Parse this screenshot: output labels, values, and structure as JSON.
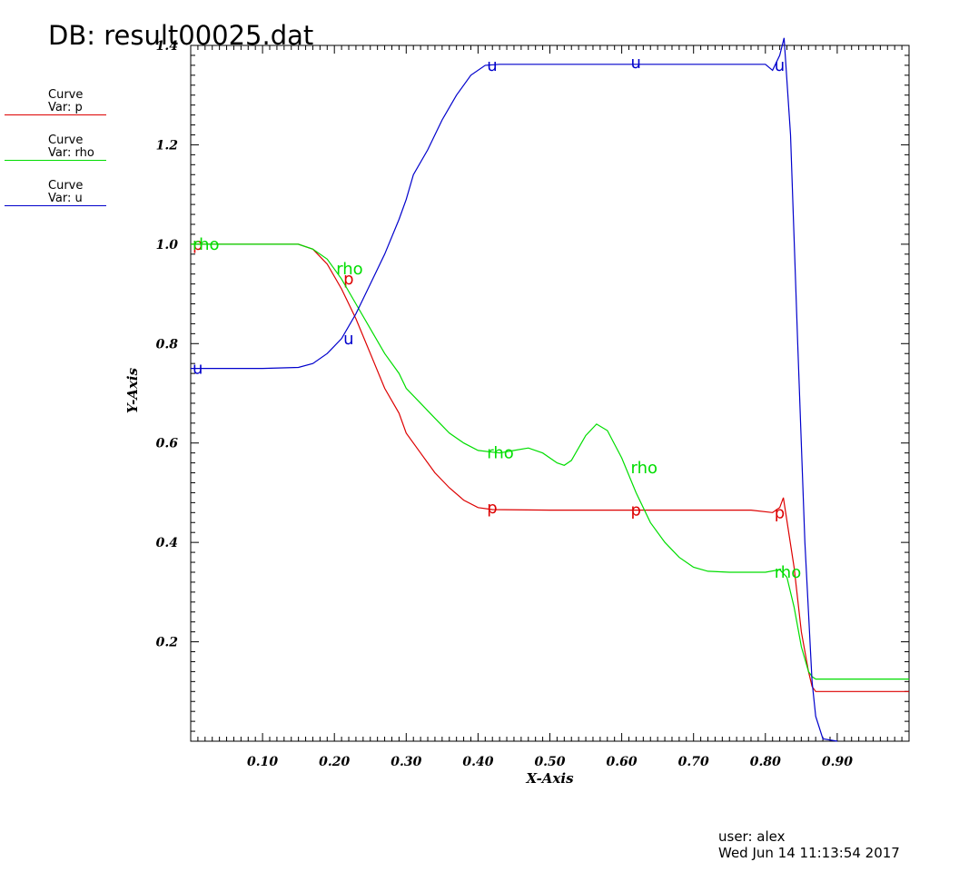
{
  "header": {
    "title": "DB: result00025.dat"
  },
  "legend": [
    {
      "label": "Curve",
      "var": "Var: p",
      "color": "#dd0000"
    },
    {
      "label": "Curve",
      "var": "Var: rho",
      "color": "#00dd00"
    },
    {
      "label": "Curve",
      "var": "Var: u",
      "color": "#0000cc"
    }
  ],
  "footer": {
    "user": "user: alex",
    "date": "Wed Jun 14 11:13:54 2017"
  },
  "chart_data": {
    "type": "line",
    "title": "DB: result00025.dat",
    "xlabel": "X-Axis",
    "ylabel": "Y-Axis",
    "xlim": [
      0.0,
      1.0
    ],
    "ylim": [
      0.0,
      1.4
    ],
    "xticks": [
      "0.10",
      "0.20",
      "0.30",
      "0.40",
      "0.50",
      "0.60",
      "0.70",
      "0.80",
      "0.90"
    ],
    "yticks": [
      "0.2",
      "0.4",
      "0.6",
      "0.8",
      "1.0",
      "1.2",
      "1.4"
    ],
    "grid": false,
    "legend_position": "left",
    "series": [
      {
        "name": "p",
        "color": "#dd0000",
        "points": [
          [
            0.0,
            1.0
          ],
          [
            0.1,
            1.0
          ],
          [
            0.15,
            1.0
          ],
          [
            0.17,
            0.99
          ],
          [
            0.19,
            0.96
          ],
          [
            0.21,
            0.91
          ],
          [
            0.23,
            0.85
          ],
          [
            0.25,
            0.78
          ],
          [
            0.27,
            0.71
          ],
          [
            0.29,
            0.66
          ],
          [
            0.3,
            0.62
          ],
          [
            0.32,
            0.58
          ],
          [
            0.34,
            0.54
          ],
          [
            0.36,
            0.51
          ],
          [
            0.38,
            0.485
          ],
          [
            0.4,
            0.47
          ],
          [
            0.42,
            0.466
          ],
          [
            0.5,
            0.465
          ],
          [
            0.6,
            0.465
          ],
          [
            0.7,
            0.465
          ],
          [
            0.78,
            0.465
          ],
          [
            0.81,
            0.46
          ],
          [
            0.82,
            0.47
          ],
          [
            0.825,
            0.49
          ],
          [
            0.84,
            0.35
          ],
          [
            0.85,
            0.22
          ],
          [
            0.86,
            0.14
          ],
          [
            0.865,
            0.11
          ],
          [
            0.87,
            0.1
          ],
          [
            1.0,
            0.1
          ]
        ],
        "markers": [
          [
            0.0,
            1.0
          ],
          [
            0.21,
            0.93
          ],
          [
            0.41,
            0.47
          ],
          [
            0.61,
            0.465
          ],
          [
            0.81,
            0.46
          ]
        ]
      },
      {
        "name": "rho",
        "color": "#00dd00",
        "points": [
          [
            0.0,
            1.0
          ],
          [
            0.1,
            1.0
          ],
          [
            0.15,
            1.0
          ],
          [
            0.17,
            0.99
          ],
          [
            0.19,
            0.97
          ],
          [
            0.21,
            0.93
          ],
          [
            0.23,
            0.88
          ],
          [
            0.25,
            0.83
          ],
          [
            0.27,
            0.78
          ],
          [
            0.29,
            0.74
          ],
          [
            0.3,
            0.71
          ],
          [
            0.32,
            0.68
          ],
          [
            0.34,
            0.65
          ],
          [
            0.36,
            0.62
          ],
          [
            0.38,
            0.6
          ],
          [
            0.4,
            0.585
          ],
          [
            0.43,
            0.58
          ],
          [
            0.45,
            0.585
          ],
          [
            0.47,
            0.59
          ],
          [
            0.49,
            0.58
          ],
          [
            0.51,
            0.56
          ],
          [
            0.52,
            0.555
          ],
          [
            0.53,
            0.565
          ],
          [
            0.54,
            0.59
          ],
          [
            0.55,
            0.615
          ],
          [
            0.565,
            0.638
          ],
          [
            0.58,
            0.625
          ],
          [
            0.6,
            0.57
          ],
          [
            0.62,
            0.5
          ],
          [
            0.64,
            0.44
          ],
          [
            0.66,
            0.4
          ],
          [
            0.68,
            0.37
          ],
          [
            0.7,
            0.35
          ],
          [
            0.72,
            0.342
          ],
          [
            0.75,
            0.34
          ],
          [
            0.8,
            0.34
          ],
          [
            0.82,
            0.345
          ],
          [
            0.83,
            0.33
          ],
          [
            0.84,
            0.27
          ],
          [
            0.85,
            0.19
          ],
          [
            0.86,
            0.14
          ],
          [
            0.865,
            0.13
          ],
          [
            0.87,
            0.125
          ],
          [
            1.0,
            0.125
          ]
        ],
        "markers": [
          [
            0.0,
            1.0
          ],
          [
            0.2,
            0.95
          ],
          [
            0.41,
            0.58
          ],
          [
            0.61,
            0.55
          ],
          [
            0.81,
            0.34
          ]
        ]
      },
      {
        "name": "u",
        "color": "#0000cc",
        "points": [
          [
            0.0,
            0.75
          ],
          [
            0.1,
            0.75
          ],
          [
            0.15,
            0.752
          ],
          [
            0.17,
            0.76
          ],
          [
            0.19,
            0.78
          ],
          [
            0.21,
            0.81
          ],
          [
            0.23,
            0.86
          ],
          [
            0.25,
            0.92
          ],
          [
            0.27,
            0.98
          ],
          [
            0.29,
            1.05
          ],
          [
            0.3,
            1.09
          ],
          [
            0.31,
            1.14
          ],
          [
            0.33,
            1.19
          ],
          [
            0.35,
            1.25
          ],
          [
            0.37,
            1.3
          ],
          [
            0.39,
            1.34
          ],
          [
            0.41,
            1.36
          ],
          [
            0.43,
            1.362
          ],
          [
            0.5,
            1.362
          ],
          [
            0.6,
            1.362
          ],
          [
            0.7,
            1.362
          ],
          [
            0.8,
            1.362
          ],
          [
            0.81,
            1.35
          ],
          [
            0.82,
            1.38
          ],
          [
            0.826,
            1.415
          ],
          [
            0.835,
            1.22
          ],
          [
            0.845,
            0.8
          ],
          [
            0.855,
            0.4
          ],
          [
            0.865,
            0.12
          ],
          [
            0.87,
            0.05
          ],
          [
            0.88,
            0.005
          ],
          [
            0.9,
            0.0
          ]
        ],
        "markers": [
          [
            0.0,
            0.75
          ],
          [
            0.21,
            0.81
          ],
          [
            0.41,
            1.36
          ],
          [
            0.61,
            1.365
          ],
          [
            0.81,
            1.36
          ]
        ]
      }
    ]
  }
}
